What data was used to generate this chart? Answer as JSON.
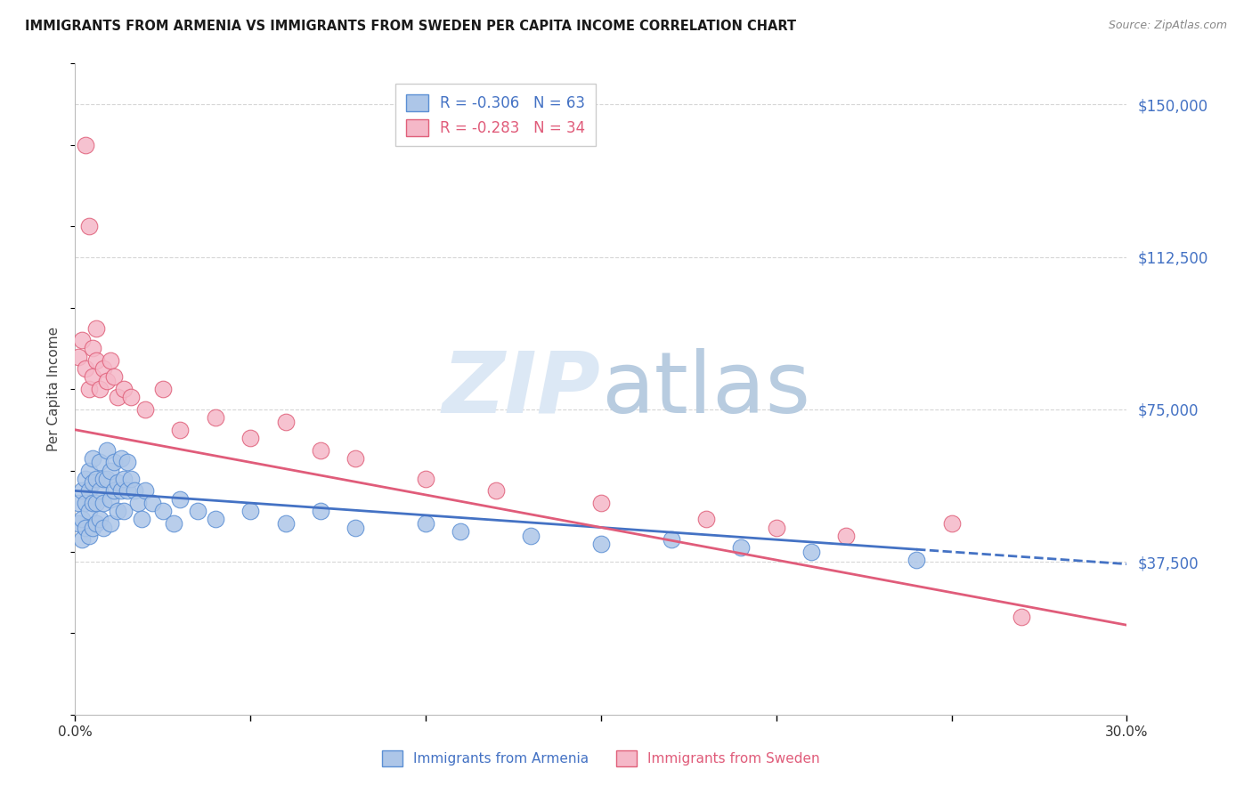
{
  "title": "IMMIGRANTS FROM ARMENIA VS IMMIGRANTS FROM SWEDEN PER CAPITA INCOME CORRELATION CHART",
  "source": "Source: ZipAtlas.com",
  "ylabel": "Per Capita Income",
  "armenia_label": "Immigrants from Armenia",
  "sweden_label": "Immigrants from Sweden",
  "armenia_R": "-0.306",
  "armenia_N": "63",
  "sweden_R": "-0.283",
  "sweden_N": "34",
  "armenia_color": "#adc6e8",
  "armenia_edge_color": "#5b8fd4",
  "armenia_line_color": "#4472c4",
  "sweden_color": "#f5b8c8",
  "sweden_edge_color": "#e0607a",
  "sweden_line_color": "#e05c7a",
  "watermark_zip": "ZIP",
  "watermark_atlas": "atlas",
  "watermark_color_zip": "#d8e4f0",
  "watermark_color_atlas": "#b8cce0",
  "background_color": "#ffffff",
  "grid_color": "#cccccc",
  "title_color": "#1a1a1a",
  "axis_label_color": "#4472c4",
  "source_color": "#888888",
  "ylim": [
    0,
    160000
  ],
  "xlim": [
    0.0,
    0.3
  ],
  "ytick_positions": [
    0,
    37500,
    75000,
    112500,
    150000
  ],
  "ytick_labels": [
    "",
    "$37,500",
    "$75,000",
    "$112,500",
    "$150,000"
  ],
  "armenia_x": [
    0.001,
    0.001,
    0.002,
    0.002,
    0.002,
    0.003,
    0.003,
    0.003,
    0.004,
    0.004,
    0.004,
    0.004,
    0.005,
    0.005,
    0.005,
    0.005,
    0.006,
    0.006,
    0.006,
    0.007,
    0.007,
    0.007,
    0.008,
    0.008,
    0.008,
    0.009,
    0.009,
    0.01,
    0.01,
    0.01,
    0.011,
    0.011,
    0.012,
    0.012,
    0.013,
    0.013,
    0.014,
    0.014,
    0.015,
    0.015,
    0.016,
    0.017,
    0.018,
    0.019,
    0.02,
    0.022,
    0.025,
    0.028,
    0.03,
    0.035,
    0.04,
    0.05,
    0.06,
    0.07,
    0.08,
    0.1,
    0.11,
    0.13,
    0.15,
    0.17,
    0.19,
    0.21,
    0.24
  ],
  "armenia_y": [
    52000,
    47000,
    55000,
    48000,
    43000,
    58000,
    52000,
    46000,
    60000,
    55000,
    50000,
    44000,
    63000,
    57000,
    52000,
    46000,
    58000,
    52000,
    47000,
    62000,
    55000,
    48000,
    58000,
    52000,
    46000,
    65000,
    58000,
    60000,
    53000,
    47000,
    62000,
    55000,
    57000,
    50000,
    63000,
    55000,
    58000,
    50000,
    62000,
    55000,
    58000,
    55000,
    52000,
    48000,
    55000,
    52000,
    50000,
    47000,
    53000,
    50000,
    48000,
    50000,
    47000,
    50000,
    46000,
    47000,
    45000,
    44000,
    42000,
    43000,
    41000,
    40000,
    38000
  ],
  "sweden_x": [
    0.001,
    0.002,
    0.003,
    0.003,
    0.004,
    0.004,
    0.005,
    0.005,
    0.006,
    0.006,
    0.007,
    0.008,
    0.009,
    0.01,
    0.011,
    0.012,
    0.014,
    0.016,
    0.02,
    0.025,
    0.03,
    0.04,
    0.05,
    0.06,
    0.07,
    0.08,
    0.1,
    0.12,
    0.15,
    0.18,
    0.2,
    0.22,
    0.25,
    0.27
  ],
  "sweden_y": [
    88000,
    92000,
    140000,
    85000,
    120000,
    80000,
    90000,
    83000,
    95000,
    87000,
    80000,
    85000,
    82000,
    87000,
    83000,
    78000,
    80000,
    78000,
    75000,
    80000,
    70000,
    73000,
    68000,
    72000,
    65000,
    63000,
    58000,
    55000,
    52000,
    48000,
    46000,
    44000,
    47000,
    24000
  ],
  "armenia_trend_y0": 55000,
  "armenia_trend_y1": 37000,
  "sweden_trend_y0": 70000,
  "sweden_trend_y1": 22000
}
